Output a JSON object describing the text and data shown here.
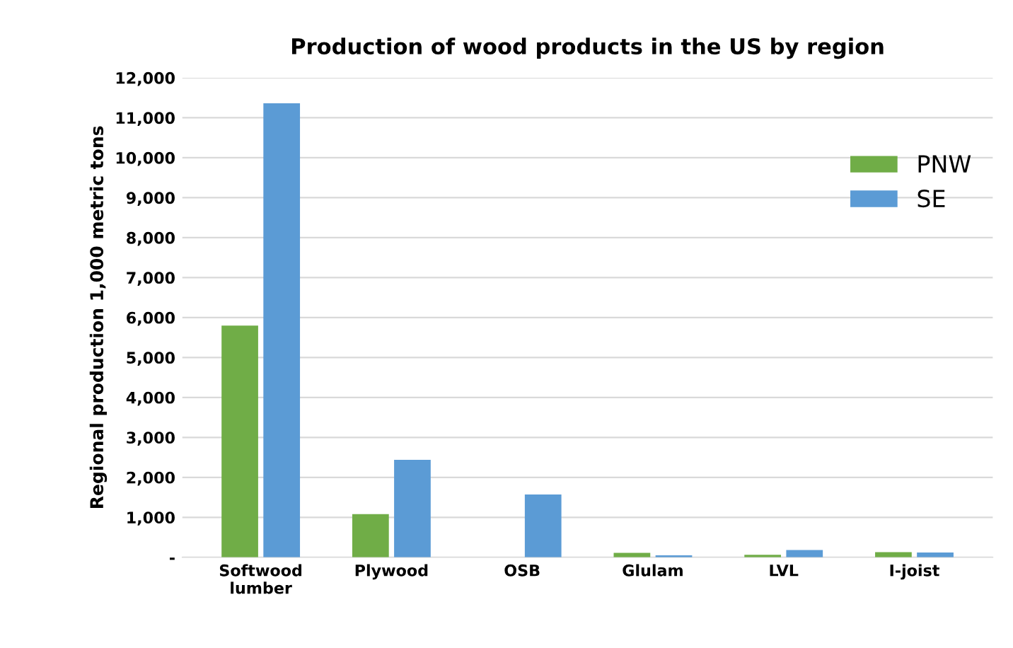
{
  "chart_data": {
    "type": "bar",
    "title": "Production of wood products in the US by region",
    "ylabel": "Regional production 1,000 metric tons",
    "categories": [
      "Softwood\nlumber",
      "Plywood",
      "OSB",
      "Glulam",
      "LVL",
      "I-joist"
    ],
    "series": [
      {
        "name": "PNW",
        "color": "#70ad47",
        "values": [
          5800,
          1080,
          null,
          110,
          60,
          130
        ]
      },
      {
        "name": "SE",
        "color": "#5b9bd5",
        "values": [
          11360,
          2440,
          1570,
          50,
          180,
          120
        ]
      }
    ],
    "ylim": [
      0,
      12000
    ],
    "yticks": [
      {
        "value": 0,
        "label": "-"
      },
      {
        "value": 1000,
        "label": "1,000"
      },
      {
        "value": 2000,
        "label": "2,000"
      },
      {
        "value": 3000,
        "label": "3,000"
      },
      {
        "value": 4000,
        "label": "4,000"
      },
      {
        "value": 5000,
        "label": "5,000"
      },
      {
        "value": 6000,
        "label": "6,000"
      },
      {
        "value": 7000,
        "label": "7,000"
      },
      {
        "value": 8000,
        "label": "8,000"
      },
      {
        "value": 9000,
        "label": "9,000"
      },
      {
        "value": 10000,
        "label": "10,000"
      },
      {
        "value": 11000,
        "label": "11,000"
      },
      {
        "value": 12000,
        "label": "12,000"
      }
    ],
    "grid": "y",
    "legend": "right"
  }
}
